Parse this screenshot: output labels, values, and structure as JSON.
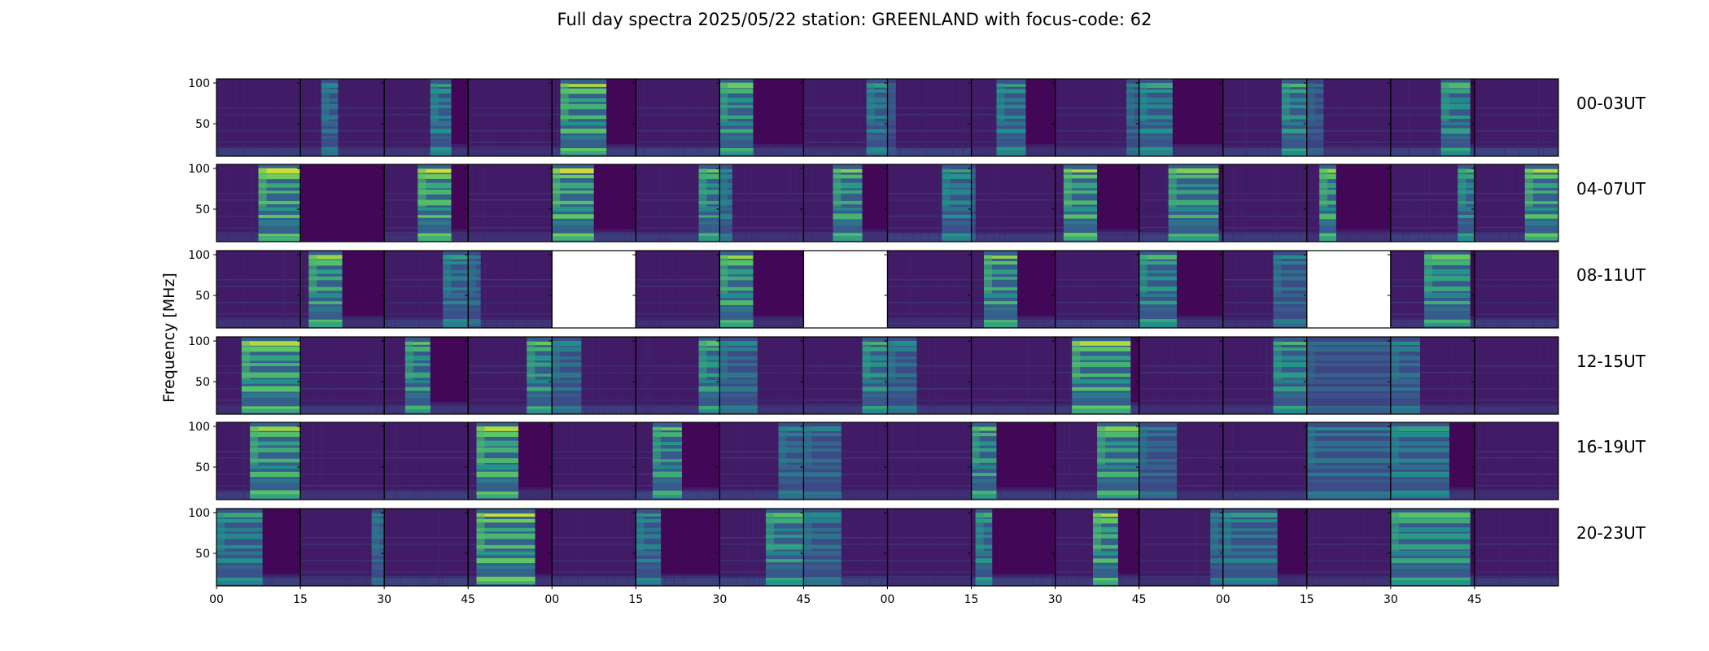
{
  "chart_data": {
    "type": "heatmap",
    "title": "Full day spectra 2025/05/22 station: GREENLAND with focus-code: 62",
    "ylabel": "Frequency [MHz]",
    "ylim": [
      10,
      105
    ],
    "yticks": [
      50,
      100
    ],
    "xticks": [
      "00",
      "15",
      "30",
      "45",
      "00",
      "15",
      "30",
      "45",
      "00",
      "15",
      "30",
      "45",
      "00",
      "15",
      "30",
      "45"
    ],
    "colormap": "viridis",
    "colors": {
      "low": "#440154",
      "mid": "#3b528b",
      "teal": "#21918c",
      "green": "#5ec962",
      "high": "#fde725"
    },
    "rows": [
      {
        "label": "00-03UT",
        "panels": [
          {
            "burst": null,
            "intensity": 0.05
          },
          {
            "burst": [
              0.25,
              0.45
            ],
            "intensity": 0.35
          },
          {
            "burst": [
              0.55,
              0.8
            ],
            "intensity": 0.5
          },
          {
            "burst": null,
            "intensity": 0.05
          },
          {
            "burst": [
              0.1,
              0.65
            ],
            "intensity": 0.85
          },
          {
            "burst": null,
            "intensity": 0.05
          },
          {
            "burst": [
              0.0,
              0.4
            ],
            "intensity": 0.7
          },
          {
            "burst": [
              0.75,
              1.0
            ],
            "intensity": 0.45
          },
          {
            "burst": [
              0.0,
              0.1
            ],
            "intensity": 0.1
          },
          {
            "burst": [
              0.3,
              0.65
            ],
            "intensity": 0.5
          },
          {
            "burst": [
              0.85,
              1.0
            ],
            "intensity": 0.3
          },
          {
            "burst": [
              0.0,
              0.4
            ],
            "intensity": 0.5
          },
          {
            "burst": [
              0.7,
              1.0
            ],
            "intensity": 0.6
          },
          {
            "burst": [
              0.0,
              0.2
            ],
            "intensity": 0.2
          },
          {
            "burst": [
              0.6,
              0.95
            ],
            "intensity": 0.6
          },
          {
            "burst": null,
            "intensity": 0.05
          }
        ]
      },
      {
        "label": "04-07UT",
        "panels": [
          {
            "burst": [
              0.5,
              1.0
            ],
            "intensity": 0.9
          },
          {
            "burst": null,
            "intensity": 0.0
          },
          {
            "burst": [
              0.4,
              0.8
            ],
            "intensity": 0.9
          },
          {
            "burst": null,
            "intensity": 0.05
          },
          {
            "burst": [
              0.0,
              0.5
            ],
            "intensity": 0.9
          },
          {
            "burst": [
              0.75,
              1.0
            ],
            "intensity": 0.7
          },
          {
            "burst": [
              0.0,
              0.15
            ],
            "intensity": 0.4
          },
          {
            "burst": [
              0.35,
              0.7
            ],
            "intensity": 0.75
          },
          {
            "burst": [
              0.65,
              1.0
            ],
            "intensity": 0.5
          },
          {
            "burst": [
              0.0,
              0.05
            ],
            "intensity": 0.2
          },
          {
            "burst": [
              0.1,
              0.5
            ],
            "intensity": 0.85
          },
          {
            "burst": [
              0.35,
              0.95
            ],
            "intensity": 0.75
          },
          {
            "burst": null,
            "intensity": 0.05
          },
          {
            "burst": [
              0.15,
              0.35
            ],
            "intensity": 0.8
          },
          {
            "burst": [
              0.8,
              1.0
            ],
            "intensity": 0.6
          },
          {
            "burst": [
              0.6,
              1.0
            ],
            "intensity": 0.85
          }
        ]
      },
      {
        "label": "08-11UT",
        "panels": [
          {
            "burst": null,
            "intensity": 0.05
          },
          {
            "burst": [
              0.1,
              0.5
            ],
            "intensity": 0.8
          },
          {
            "burst": [
              0.7,
              1.0
            ],
            "intensity": 0.45
          },
          {
            "burst": [
              0.0,
              0.15
            ],
            "intensity": 0.3
          },
          {
            "burst": "empty",
            "intensity": 0
          },
          {
            "burst": null,
            "intensity": 0.05
          },
          {
            "burst": [
              0.0,
              0.4
            ],
            "intensity": 0.8
          },
          {
            "burst": "empty",
            "intensity": 0
          },
          {
            "burst": null,
            "intensity": 0.05
          },
          {
            "burst": [
              0.15,
              0.55
            ],
            "intensity": 0.8
          },
          {
            "burst": null,
            "intensity": 0.05
          },
          {
            "burst": [
              0.0,
              0.45
            ],
            "intensity": 0.6
          },
          {
            "burst": [
              0.6,
              1.0
            ],
            "intensity": 0.35
          },
          {
            "burst": "empty",
            "intensity": 0
          },
          {
            "burst": [
              0.4,
              0.95
            ],
            "intensity": 0.7
          },
          {
            "burst": null,
            "intensity": 0.05
          }
        ]
      },
      {
        "label": "12-15UT",
        "panels": [
          {
            "burst": [
              0.3,
              1.0
            ],
            "intensity": 0.85
          },
          {
            "burst": null,
            "intensity": 0.05
          },
          {
            "burst": [
              0.25,
              0.55
            ],
            "intensity": 0.7
          },
          {
            "burst": [
              0.7,
              1.0
            ],
            "intensity": 0.7
          },
          {
            "burst": [
              0.0,
              0.35
            ],
            "intensity": 0.35
          },
          {
            "burst": [
              0.75,
              1.0
            ],
            "intensity": 0.65
          },
          {
            "burst": [
              0.0,
              0.45
            ],
            "intensity": 0.35
          },
          {
            "burst": [
              0.7,
              1.0
            ],
            "intensity": 0.6
          },
          {
            "burst": [
              0.0,
              0.35
            ],
            "intensity": 0.35
          },
          {
            "burst": null,
            "intensity": 0.05
          },
          {
            "burst": [
              0.2,
              0.9
            ],
            "intensity": 0.85
          },
          {
            "burst": null,
            "intensity": 0.05
          },
          {
            "burst": [
              0.6,
              1.0
            ],
            "intensity": 0.6
          },
          {
            "burst": [
              0.0,
              1.0
            ],
            "intensity": 0.2
          },
          {
            "burst": [
              0.0,
              0.35
            ],
            "intensity": 0.35
          },
          {
            "burst": null,
            "intensity": 0.05
          }
        ]
      },
      {
        "label": "16-19UT",
        "panels": [
          {
            "burst": [
              0.4,
              1.0
            ],
            "intensity": 0.8
          },
          {
            "burst": null,
            "intensity": 0.05
          },
          {
            "burst": null,
            "intensity": 0.05
          },
          {
            "burst": [
              0.1,
              0.6
            ],
            "intensity": 0.85
          },
          {
            "burst": null,
            "intensity": 0.08
          },
          {
            "burst": [
              0.2,
              0.55
            ],
            "intensity": 0.7
          },
          {
            "burst": [
              0.7,
              1.0
            ],
            "intensity": 0.35
          },
          {
            "burst": [
              0.0,
              0.45
            ],
            "intensity": 0.3
          },
          {
            "burst": null,
            "intensity": 0.05
          },
          {
            "burst": [
              0.0,
              0.3
            ],
            "intensity": 0.7
          },
          {
            "burst": [
              0.5,
              1.0
            ],
            "intensity": 0.75
          },
          {
            "burst": [
              0.0,
              0.45
            ],
            "intensity": 0.3
          },
          {
            "burst": null,
            "intensity": 0.1
          },
          {
            "burst": [
              0.0,
              1.0
            ],
            "intensity": 0.35
          },
          {
            "burst": [
              0.0,
              0.7
            ],
            "intensity": 0.45
          },
          {
            "burst": null,
            "intensity": 0.1
          }
        ]
      },
      {
        "label": "20-23UT",
        "panels": [
          {
            "burst": [
              0.0,
              0.55
            ],
            "intensity": 0.5
          },
          {
            "burst": [
              0.85,
              1.0
            ],
            "intensity": 0.3
          },
          {
            "burst": null,
            "intensity": 0.08
          },
          {
            "burst": [
              0.1,
              0.8
            ],
            "intensity": 0.9
          },
          {
            "burst": null,
            "intensity": 0.1
          },
          {
            "burst": [
              0.0,
              0.3
            ],
            "intensity": 0.45
          },
          {
            "burst": [
              0.55,
              1.0
            ],
            "intensity": 0.65
          },
          {
            "burst": [
              0.0,
              0.45
            ],
            "intensity": 0.35
          },
          {
            "burst": null,
            "intensity": 0.08
          },
          {
            "burst": [
              0.05,
              0.25
            ],
            "intensity": 0.55
          },
          {
            "burst": [
              0.45,
              0.75
            ],
            "intensity": 0.85
          },
          {
            "burst": [
              0.85,
              1.0
            ],
            "intensity": 0.35
          },
          {
            "burst": [
              0.0,
              0.65
            ],
            "intensity": 0.45
          },
          {
            "burst": null,
            "intensity": 0.1
          },
          {
            "burst": [
              0.0,
              0.95
            ],
            "intensity": 0.65
          },
          {
            "burst": null,
            "intensity": 0.08
          }
        ]
      }
    ]
  }
}
